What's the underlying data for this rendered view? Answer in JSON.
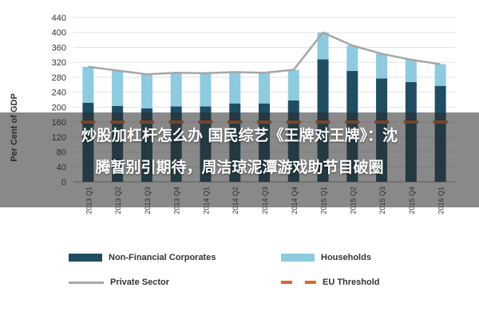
{
  "chart_data": {
    "type": "bar",
    "ylabel": "Per Cent of GDP",
    "ylim": [
      0,
      440
    ],
    "y_ticks": [
      "0",
      "40",
      "80",
      "120",
      "160",
      "200",
      "240",
      "280",
      "320",
      "360",
      "400",
      "440"
    ],
    "categories": [
      "2013 Q1",
      "2013 Q2",
      "2013 Q3",
      "2013 Q4",
      "2014 Q1",
      "2014 Q2",
      "2014 Q3",
      "2014 Q4",
      "2015 Q1",
      "2015 Q2",
      "2015 Q3",
      "2015 Q4",
      "2016 Q1"
    ],
    "stacked": true,
    "grid": true,
    "series": [
      {
        "name": "Non-Financial Corporates",
        "kind": "bar",
        "color": "#1f4e63",
        "values": [
          212,
          203,
          197,
          202,
          202,
          210,
          210,
          218,
          328,
          297,
          277,
          267,
          257
        ]
      },
      {
        "name": "Households",
        "kind": "bar",
        "color": "#8ccbe0",
        "values": [
          96,
          95,
          91,
          90,
          89,
          84,
          82,
          82,
          72,
          68,
          66,
          60,
          58
        ]
      },
      {
        "name": "Private Sector",
        "kind": "line",
        "color": "#a6a6a6",
        "values": [
          308,
          298,
          288,
          292,
          291,
          294,
          292,
          300,
          400,
          365,
          343,
          327,
          315
        ]
      },
      {
        "name": "EU Threshold",
        "kind": "dashed-line",
        "color": "#e0662a",
        "values": [
          160,
          160,
          160,
          160,
          160,
          160,
          160,
          160,
          160,
          160,
          160,
          160,
          160
        ]
      }
    ]
  },
  "overlay": {
    "line1": "炒股加杠杆怎么办 国民综艺《王牌对王牌》：沈",
    "line2": "腾暂别引期待，周洁琼泥潭游戏助节目破圈"
  },
  "legend": {
    "items": [
      {
        "label": "Non-Financial Corporates",
        "color": "#1f4e63"
      },
      {
        "label": "Households",
        "color": "#8ccbe0"
      },
      {
        "label": "Private Sector",
        "color": "#a6a6a6"
      },
      {
        "label": "EU Threshold",
        "color": "#e0662a"
      }
    ]
  }
}
